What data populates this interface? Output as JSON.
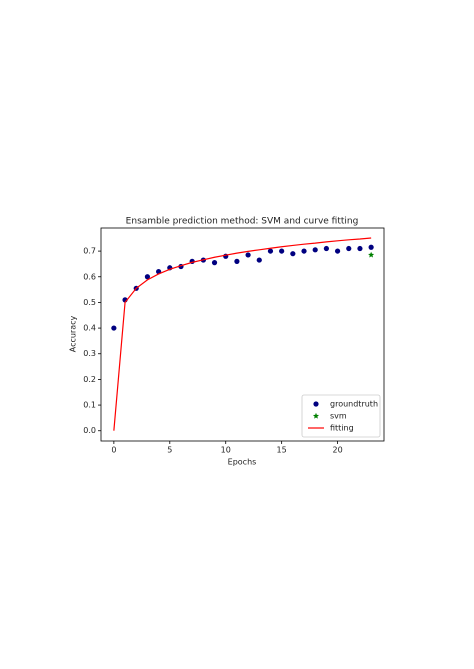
{
  "chart_data": {
    "type": "scatter",
    "title": "Ensamble prediction method: SVM and curve fitting",
    "x_label": "Epochs",
    "y_label": "Accuracy",
    "xlim": [
      -1.15,
      24.15
    ],
    "ylim": [
      -0.04,
      0.79
    ],
    "xticks": [
      0,
      5,
      10,
      15,
      20
    ],
    "yticks": [
      {
        "value": 0,
        "label": "0.0"
      },
      0.1,
      0.2,
      0.3,
      0.4,
      0.5,
      0.6,
      0.7
    ],
    "legend": "lower right",
    "series": [
      {
        "name": "groundtruth",
        "type": "scatter",
        "marker": "circle",
        "color": "#000080",
        "x": [
          0,
          1,
          2,
          3,
          4,
          5,
          6,
          7,
          8,
          9,
          10,
          11,
          12,
          13,
          14,
          15,
          16,
          17,
          18,
          19,
          20,
          21,
          22,
          23
        ],
        "values": [
          0.4,
          0.51,
          0.555,
          0.6,
          0.62,
          0.635,
          0.64,
          0.66,
          0.665,
          0.655,
          0.68,
          0.66,
          0.685,
          0.665,
          0.7,
          0.7,
          0.69,
          0.7,
          0.705,
          0.71,
          0.7,
          0.71,
          0.71,
          0.715
        ]
      },
      {
        "name": "svm",
        "type": "scatter",
        "marker": "star",
        "color": "#008000",
        "x": [
          23
        ],
        "values": [
          0.685
        ]
      },
      {
        "name": "fitting",
        "type": "line",
        "color": "#ff0000",
        "x": [
          0,
          1,
          2,
          3,
          4,
          5,
          6,
          7,
          8,
          9,
          10,
          11,
          12,
          13,
          14,
          15,
          16,
          17,
          18,
          19,
          20,
          21,
          22,
          23
        ],
        "values": [
          0,
          0.5,
          0.555,
          0.588,
          0.611,
          0.629,
          0.643,
          0.656,
          0.666,
          0.676,
          0.684,
          0.692,
          0.699,
          0.705,
          0.711,
          0.717,
          0.722,
          0.727,
          0.731,
          0.736,
          0.74,
          0.744,
          0.747,
          0.751
        ]
      }
    ]
  }
}
